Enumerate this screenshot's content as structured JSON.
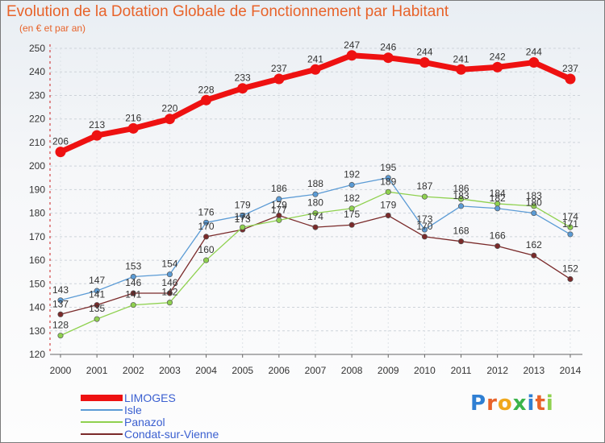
{
  "title": "Evolution de la Dotation Globale de Fonctionnement par Habitant",
  "subtitle": "(en € et par an)",
  "logo": {
    "text": "Proxiti"
  },
  "chart_data": {
    "type": "line",
    "title": "Evolution de la Dotation Globale de Fonctionnement par Habitant",
    "subtitle": "(en € et par an)",
    "x": [
      "2000",
      "2001",
      "2002",
      "2003",
      "2004",
      "2005",
      "2006",
      "2007",
      "2008",
      "2009",
      "2010",
      "2011",
      "2012",
      "2013",
      "2014"
    ],
    "ylim": [
      120,
      250
    ],
    "yticks": [
      "120",
      "130",
      "140",
      "150",
      "160",
      "170",
      "180",
      "190",
      "200",
      "210",
      "220",
      "230",
      "240",
      "250"
    ],
    "grid": true,
    "legend_position": "bottom-left",
    "series": [
      {
        "name": "LIMOGES",
        "color": "#ee1111",
        "values": [
          206,
          213,
          216,
          220,
          228,
          233,
          237,
          241,
          247,
          246,
          244,
          241,
          242,
          244,
          237
        ],
        "labels": [
          "206",
          "213",
          "216",
          "220",
          "228",
          "233",
          "237",
          "241",
          "247",
          "246",
          "244",
          "241",
          "242",
          "244",
          "237"
        ]
      },
      {
        "name": "Isle",
        "color": "#5b9bd5",
        "values": [
          143,
          147,
          153,
          154,
          176,
          179,
          186,
          188,
          192,
          195,
          173,
          183,
          182,
          180,
          171
        ],
        "labels": [
          "143",
          "147",
          "153",
          "154",
          "176",
          "179",
          "186",
          "188",
          "192",
          "195",
          "173",
          "183",
          "182",
          "180",
          "171"
        ]
      },
      {
        "name": "Panazol",
        "color": "#8fd14f",
        "values": [
          128,
          135,
          141,
          142,
          160,
          174,
          177,
          180,
          182,
          189,
          187,
          186,
          184,
          183,
          174
        ],
        "labels": [
          "128",
          "135",
          "141",
          "142",
          "160",
          "174",
          "177",
          "180",
          "182",
          "189",
          "187",
          "186",
          "184",
          "183",
          "174"
        ]
      },
      {
        "name": "Condat-sur-Vienne",
        "color": "#7a2a2a",
        "values": [
          137,
          141,
          146,
          146,
          170,
          173,
          179,
          174,
          175,
          179,
          170,
          168,
          166,
          162,
          152
        ],
        "labels": [
          "137",
          "141",
          "146",
          "146",
          "170",
          "173",
          "179",
          "174",
          "175",
          "179",
          "170",
          "168",
          "166",
          "162",
          "152"
        ]
      }
    ]
  }
}
